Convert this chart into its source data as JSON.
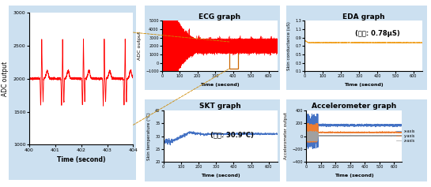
{
  "bg_color": "#cce0f0",
  "panel_bg": "#ddeeff",
  "fig_bg": "#ffffff",
  "ecg_zoom_ylabel": "ADC output",
  "ecg_zoom_xlabel": "Time (second)",
  "ecg_zoom_xlim": [
    400,
    404
  ],
  "ecg_zoom_ylim": [
    1000,
    3000
  ],
  "ecg_zoom_yticks": [
    1000,
    1500,
    2000,
    2500,
    3000
  ],
  "ecg_zoom_xticks": [
    400,
    401,
    402,
    403,
    404
  ],
  "ecg_title": "ECG graph",
  "ecg_ylabel": "ADC output",
  "ecg_xlabel": "Time (second)",
  "ecg_xlim": [
    0,
    650
  ],
  "ecg_ylim": [
    -1000,
    5000
  ],
  "ecg_yticks": [
    -1000,
    0,
    1000,
    2000,
    3000,
    4000,
    5000
  ],
  "ecg_xticks": [
    0,
    100,
    200,
    300,
    400,
    500,
    600
  ],
  "eda_title": "EDA graph",
  "eda_ylabel": "Skin conductance (uS)",
  "eda_xlabel": "Time (second)",
  "eda_xlim": [
    0,
    650
  ],
  "eda_ylim": [
    0.1,
    1.3
  ],
  "eda_yticks": [
    0.1,
    0.3,
    0.5,
    0.7,
    0.9,
    1.1,
    1.3
  ],
  "eda_avg_label": "(평균: 0.78μS)",
  "eda_avg_value": 0.78,
  "eda_color": "#f0a020",
  "skt_title": "SKT graph",
  "skt_ylabel": "Skin temperature (°C)",
  "skt_xlabel": "Time (second)",
  "skt_xlim": [
    0,
    650
  ],
  "skt_ylim": [
    20,
    40
  ],
  "skt_yticks": [
    20,
    25,
    30,
    35,
    40
  ],
  "skt_avg_label": "(평균: 30.9°C)",
  "skt_color": "#4472c4",
  "acc_title": "Accelerometer graph",
  "acc_ylabel": "Accelerometer output",
  "acc_xlabel": "Time (second)",
  "acc_xlim": [
    0,
    650
  ],
  "acc_ylim": [
    -400,
    400
  ],
  "acc_yticks": [
    -400,
    -200,
    0,
    200,
    400
  ],
  "acc_x_color": "#4472c4",
  "acc_y_color": "#ed7d31",
  "acc_z_color": "#a0a0a0",
  "acc_x_label": "x-axis",
  "acc_y_label": "y-axis",
  "acc_z_label": "z-axis",
  "connector_color": "#cc8800",
  "ecg_box_color": "#cc6600"
}
